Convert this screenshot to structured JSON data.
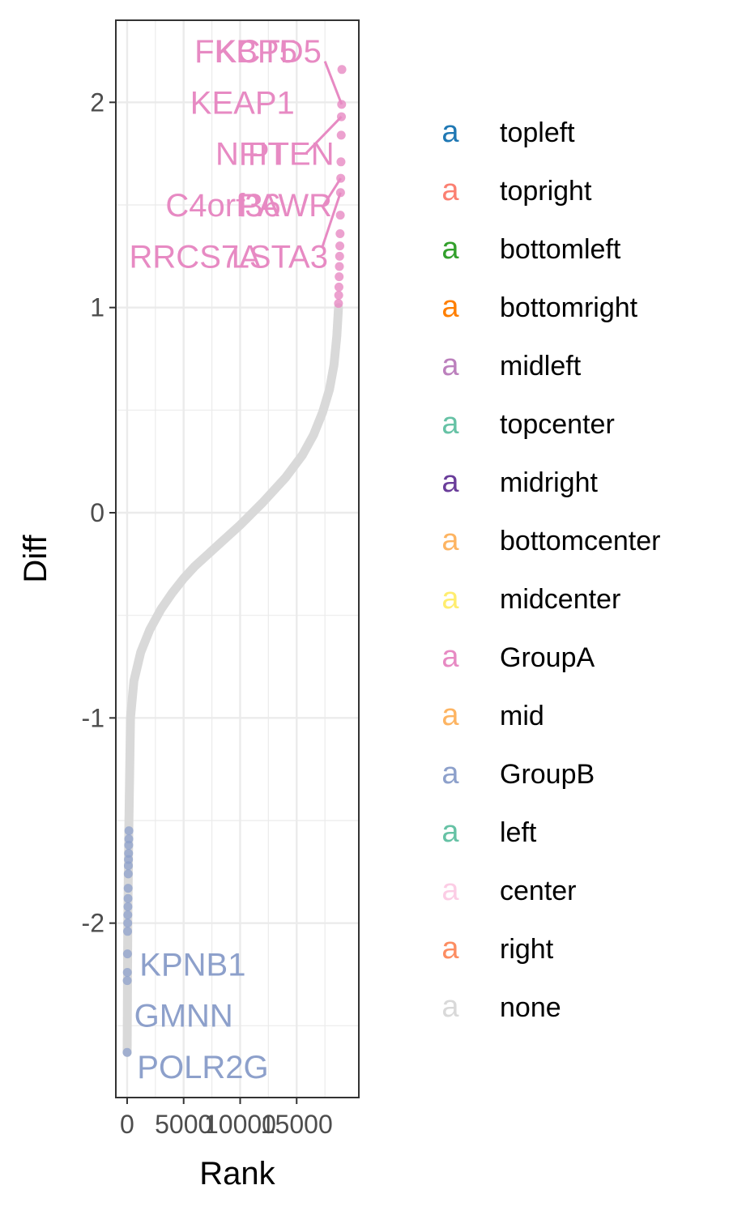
{
  "chart_data": {
    "type": "scatter",
    "xlabel": "Rank",
    "ylabel": "Diff",
    "xlim": [
      -1000,
      20500
    ],
    "ylim": [
      -2.85,
      2.4
    ],
    "x_ticks": [
      0,
      5000,
      10000,
      15000
    ],
    "x_tick_labels": [
      "0",
      "5000",
      "10000",
      "15000"
    ],
    "y_ticks": [
      -2,
      -1,
      0,
      1,
      2
    ],
    "y_tick_labels": [
      "-2",
      "-1",
      "0",
      "1",
      "2"
    ],
    "grid": true,
    "legend_position": "right",
    "n_points": 19000,
    "curve": [
      {
        "rank": 0,
        "diff": -2.63
      },
      {
        "rank": 30,
        "diff": -2.28
      },
      {
        "rank": 60,
        "diff": -1.98
      },
      {
        "rank": 150,
        "diff": -1.55
      },
      {
        "rank": 300,
        "diff": -1.0
      },
      {
        "rank": 600,
        "diff": -0.82
      },
      {
        "rank": 1200,
        "diff": -0.68
      },
      {
        "rank": 2000,
        "diff": -0.57
      },
      {
        "rank": 3000,
        "diff": -0.47
      },
      {
        "rank": 4000,
        "diff": -0.39
      },
      {
        "rank": 5000,
        "diff": -0.32
      },
      {
        "rank": 6000,
        "diff": -0.26
      },
      {
        "rank": 8000,
        "diff": -0.16
      },
      {
        "rank": 10000,
        "diff": -0.06
      },
      {
        "rank": 12000,
        "diff": 0.05
      },
      {
        "rank": 14000,
        "diff": 0.17
      },
      {
        "rank": 15500,
        "diff": 0.28
      },
      {
        "rank": 16500,
        "diff": 0.38
      },
      {
        "rank": 17300,
        "diff": 0.49
      },
      {
        "rank": 17900,
        "diff": 0.6
      },
      {
        "rank": 18300,
        "diff": 0.72
      },
      {
        "rank": 18550,
        "diff": 0.86
      },
      {
        "rank": 18700,
        "diff": 1.0
      }
    ],
    "group_b_points": [
      {
        "rank": 0,
        "diff": -2.63
      },
      {
        "rank": 10,
        "diff": -2.28
      },
      {
        "rank": 20,
        "diff": -2.24
      },
      {
        "rank": 30,
        "diff": -2.15
      },
      {
        "rank": 40,
        "diff": -2.04
      },
      {
        "rank": 50,
        "diff": -2.0
      },
      {
        "rank": 60,
        "diff": -1.96
      },
      {
        "rank": 70,
        "diff": -1.92
      },
      {
        "rank": 80,
        "diff": -1.88
      },
      {
        "rank": 90,
        "diff": -1.83
      },
      {
        "rank": 100,
        "diff": -1.76
      },
      {
        "rank": 110,
        "diff": -1.72
      },
      {
        "rank": 120,
        "diff": -1.69
      },
      {
        "rank": 130,
        "diff": -1.66
      },
      {
        "rank": 140,
        "diff": -1.62
      },
      {
        "rank": 150,
        "diff": -1.59
      },
      {
        "rank": 160,
        "diff": -1.55
      }
    ],
    "group_a_points": [
      {
        "rank": 18700,
        "diff": 1.02
      },
      {
        "rank": 18720,
        "diff": 1.06
      },
      {
        "rank": 18740,
        "diff": 1.1
      },
      {
        "rank": 18760,
        "diff": 1.15
      },
      {
        "rank": 18780,
        "diff": 1.2
      },
      {
        "rank": 18800,
        "diff": 1.25
      },
      {
        "rank": 18820,
        "diff": 1.3
      },
      {
        "rank": 18840,
        "diff": 1.36
      },
      {
        "rank": 18860,
        "diff": 1.45
      },
      {
        "rank": 18880,
        "diff": 1.56
      },
      {
        "rank": 18900,
        "diff": 1.63
      },
      {
        "rank": 18920,
        "diff": 1.71
      },
      {
        "rank": 18940,
        "diff": 1.84
      },
      {
        "rank": 18960,
        "diff": 1.93
      },
      {
        "rank": 18980,
        "diff": 1.99
      },
      {
        "rank": 19000,
        "diff": 2.16
      }
    ],
    "labels": [
      {
        "text": "FKBP5",
        "group": "GroupA",
        "x": 10500,
        "y": 2.25
      },
      {
        "text": "KCTD5",
        "group": "GroupA",
        "x": 12500,
        "y": 2.25
      },
      {
        "text": "KEAP1",
        "group": "GroupA",
        "x": 10200,
        "y": 2.0
      },
      {
        "text": "NFIT",
        "group": "GroupA",
        "x": 11000,
        "y": 1.75
      },
      {
        "text": "PTEN",
        "group": "GroupA",
        "x": 14500,
        "y": 1.75
      },
      {
        "text": "C4orf36",
        "group": "GroupA",
        "x": 8500,
        "y": 1.5
      },
      {
        "text": "PAWR",
        "group": "GroupA",
        "x": 14000,
        "y": 1.5
      },
      {
        "text": "RRCS7A",
        "group": "GroupA",
        "x": 6000,
        "y": 1.25
      },
      {
        "text": "LSTA3",
        "group": "GroupA",
        "x": 13500,
        "y": 1.25
      },
      {
        "text": "KPNB1",
        "group": "GroupB",
        "x": 5800,
        "y": -2.2
      },
      {
        "text": "GMNN",
        "group": "GroupB",
        "x": 5000,
        "y": -2.45
      },
      {
        "text": "POLR2G",
        "group": "GroupB",
        "x": 6700,
        "y": -2.7
      }
    ],
    "leader_lines": [
      {
        "group": "GroupA",
        "from": [
          17500,
          2.2
        ],
        "to": [
          18980,
          1.99
        ]
      },
      {
        "group": "GroupA",
        "from": [
          15800,
          1.75
        ],
        "to": [
          18960,
          1.93
        ]
      },
      {
        "group": "GroupA",
        "from": [
          17400,
          1.5
        ],
        "to": [
          18900,
          1.63
        ]
      },
      {
        "group": "GroupA",
        "from": [
          17300,
          1.3
        ],
        "to": [
          18880,
          1.56
        ]
      }
    ],
    "legend": [
      {
        "key": "a",
        "label": "topleft",
        "color": "#1F78B4"
      },
      {
        "key": "a",
        "label": "topright",
        "color": "#FB8072"
      },
      {
        "key": "a",
        "label": "bottomleft",
        "color": "#33A02C"
      },
      {
        "key": "a",
        "label": "bottomright",
        "color": "#FF7F00"
      },
      {
        "key": "a",
        "label": "midleft",
        "color": "#BC80BD"
      },
      {
        "key": "a",
        "label": "topcenter",
        "color": "#66C2A5"
      },
      {
        "key": "a",
        "label": "midright",
        "color": "#6A3D9A"
      },
      {
        "key": "a",
        "label": "bottomcenter",
        "color": "#FDB462"
      },
      {
        "key": "a",
        "label": "midcenter",
        "color": "#FFED6F"
      },
      {
        "key": "a",
        "label": "GroupA",
        "color": "#E78AC3"
      },
      {
        "key": "a",
        "label": "mid",
        "color": "#FDB462"
      },
      {
        "key": "a",
        "label": "GroupB",
        "color": "#8DA0CB"
      },
      {
        "key": "a",
        "label": "left",
        "color": "#66C2A5"
      },
      {
        "key": "a",
        "label": "center",
        "color": "#FCCDE5"
      },
      {
        "key": "a",
        "label": "right",
        "color": "#FC8D62"
      },
      {
        "key": "a",
        "label": "none",
        "color": "#D9D9D9"
      }
    ],
    "colors": {
      "GroupA": "#E78AC3",
      "GroupB": "#8DA0CB",
      "none": "#D9D9D9",
      "grid": "#EBEBEB",
      "panel_border": "#333333"
    }
  }
}
